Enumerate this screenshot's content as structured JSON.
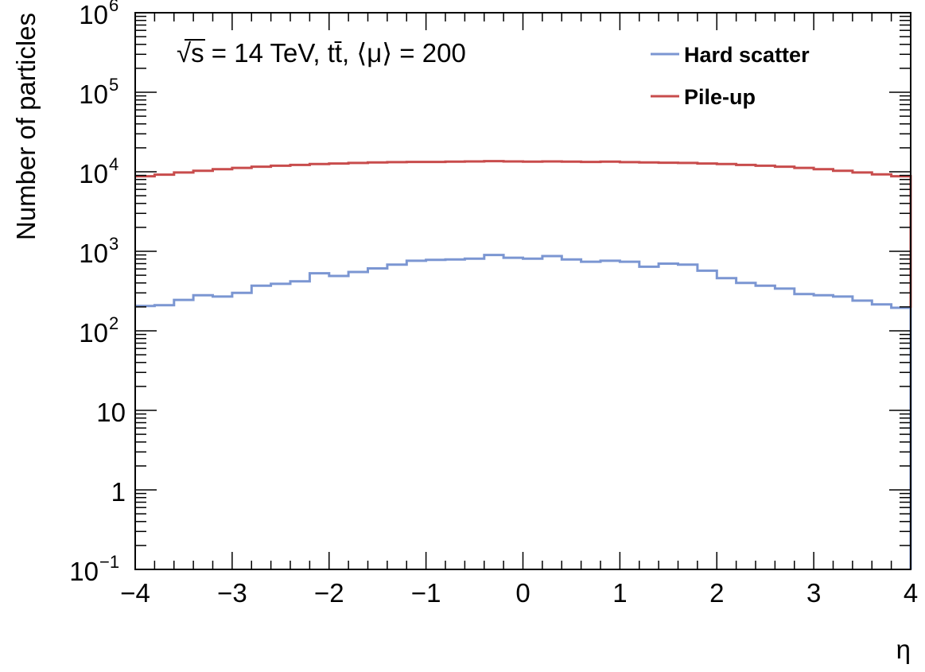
{
  "chart_data": {
    "type": "line",
    "title": "",
    "annotation": {
      "sqrt": "√s",
      "energy": " = 14 TeV, ",
      "process": "tt̄",
      "mu": ", ⟨μ⟩ = 200"
    },
    "xlabel": "η",
    "ylabel": "Number of particles",
    "xlim": [
      -4,
      4
    ],
    "ylim": [
      0.1,
      1000000
    ],
    "yscale": "log",
    "grid": false,
    "legend_position": "top-right",
    "x_ticks": [
      {
        "value": -4,
        "label": "−4"
      },
      {
        "value": -3,
        "label": "−3"
      },
      {
        "value": -2,
        "label": "−2"
      },
      {
        "value": -1,
        "label": "−1"
      },
      {
        "value": 0,
        "label": "0"
      },
      {
        "value": 1,
        "label": "1"
      },
      {
        "value": 2,
        "label": "2"
      },
      {
        "value": 3,
        "label": "3"
      },
      {
        "value": 4,
        "label": "4"
      }
    ],
    "y_ticks": [
      {
        "value": 0.1,
        "base": "10",
        "exp": "−1"
      },
      {
        "value": 1,
        "base": "1",
        "exp": ""
      },
      {
        "value": 10,
        "base": "10",
        "exp": ""
      },
      {
        "value": 100,
        "base": "10",
        "exp": "2"
      },
      {
        "value": 1000,
        "base": "10",
        "exp": "3"
      },
      {
        "value": 10000,
        "base": "10",
        "exp": "4"
      },
      {
        "value": 100000,
        "base": "10",
        "exp": "5"
      },
      {
        "value": 1000000,
        "base": "10",
        "exp": "6"
      }
    ],
    "bin_edges": [
      -4.0,
      -3.8,
      -3.6,
      -3.4,
      -3.2,
      -3.0,
      -2.8,
      -2.6,
      -2.4,
      -2.2,
      -2.0,
      -1.8,
      -1.6,
      -1.4,
      -1.2,
      -1.0,
      -0.8,
      -0.6,
      -0.4,
      -0.2,
      0.0,
      0.2,
      0.4,
      0.6,
      0.8,
      1.0,
      1.2,
      1.4,
      1.6,
      1.8,
      2.0,
      2.2,
      2.4,
      2.6,
      2.8,
      3.0,
      3.2,
      3.4,
      3.6,
      3.8,
      4.0
    ],
    "series": [
      {
        "name": "Hard scatter",
        "color": "#7b96d2",
        "values": [
          205,
          210,
          245,
          280,
          270,
          300,
          370,
          390,
          420,
          530,
          490,
          550,
          610,
          680,
          760,
          780,
          790,
          810,
          900,
          830,
          810,
          870,
          790,
          740,
          760,
          740,
          640,
          700,
          680,
          570,
          460,
          400,
          370,
          340,
          290,
          280,
          270,
          240,
          215,
          195
        ]
      },
      {
        "name": "Pile-up",
        "color": "#c84c4c",
        "values": [
          8800,
          9200,
          9800,
          10300,
          10800,
          11200,
          11600,
          11900,
          12200,
          12500,
          12700,
          12900,
          13100,
          13200,
          13300,
          13300,
          13400,
          13500,
          13600,
          13500,
          13400,
          13500,
          13400,
          13300,
          13400,
          13200,
          13100,
          13000,
          12900,
          12700,
          12500,
          12200,
          11900,
          11600,
          11200,
          10800,
          10300,
          9800,
          9300,
          8800
        ]
      }
    ]
  }
}
